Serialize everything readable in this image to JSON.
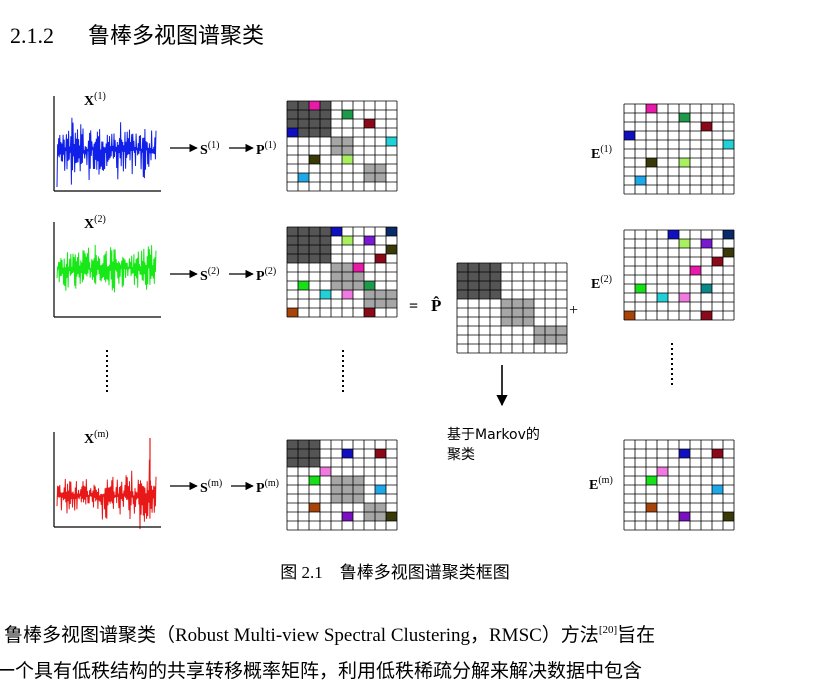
{
  "heading": {
    "number": "2.1.2",
    "title": "鲁棒多视图谱聚类"
  },
  "figure": {
    "views": [
      {
        "x_base": "X",
        "x_sup": "(1)",
        "s_base": "S",
        "s_sup": "(1)",
        "p_base": "P",
        "p_sup": "(1)",
        "e_base": "E",
        "e_sup": "(1)",
        "signal_color": "#1020e8"
      },
      {
        "x_base": "X",
        "x_sup": "(2)",
        "s_base": "S",
        "s_sup": "(2)",
        "p_base": "P",
        "p_sup": "(2)",
        "e_base": "E",
        "e_sup": "(2)",
        "signal_color": "#18e818"
      },
      {
        "x_base": "X",
        "x_sup": "(m)",
        "s_base": "S",
        "s_sup": "(m)",
        "p_base": "P",
        "p_sup": "(m)",
        "e_base": "E",
        "e_sup": "(m)",
        "signal_color": "#e81818"
      }
    ],
    "equals": "=",
    "plus": "+",
    "p_hat": "P̂",
    "markov_note_line1": "基于Markov的",
    "markov_note_line2": "聚类",
    "caption": "图 2.1　鲁棒多视图谱聚类框图"
  },
  "paragraph": {
    "line1_before": "鲁棒多视图谱聚类（Robust Multi-view Spectral Clustering，RMSC）方法",
    "line1_ref": "[20]",
    "line1_after": "旨在",
    "line2": "一个具有低秩结构的共享转移概率矩阵，利用低秩稀疏分解来解决数据中包含"
  }
}
